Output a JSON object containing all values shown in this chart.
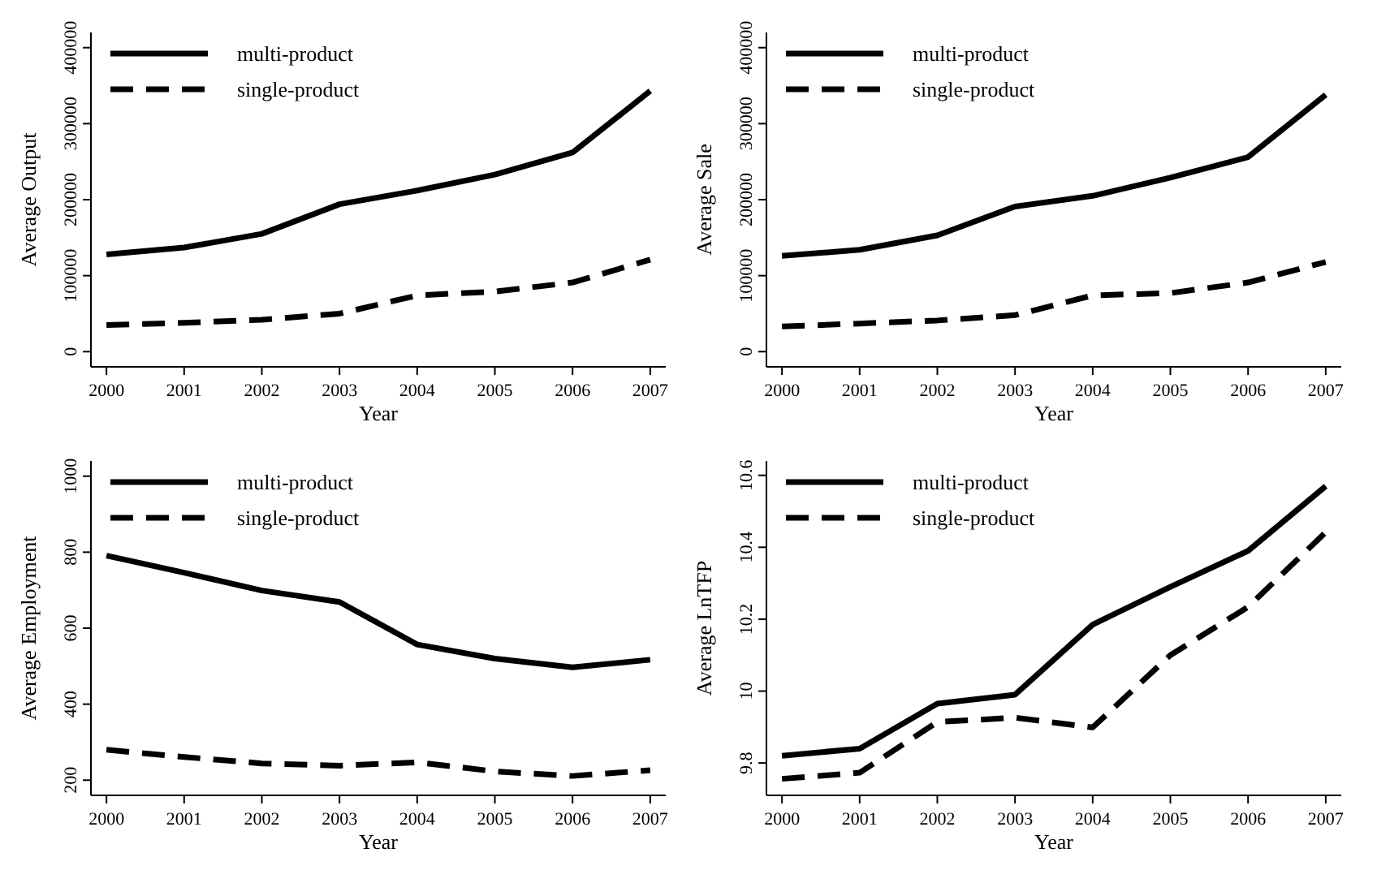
{
  "chart_data": [
    {
      "type": "line",
      "xlabel": "Year",
      "ylabel": "Average Output",
      "x": [
        2000,
        2001,
        2002,
        2003,
        2004,
        2005,
        2006,
        2007
      ],
      "xlim": [
        1999.8,
        2007.2
      ],
      "xticks": [
        2000,
        2001,
        2002,
        2003,
        2004,
        2005,
        2006,
        2007
      ],
      "ylim": [
        -20000,
        420000
      ],
      "yticks": [
        0,
        100000,
        200000,
        300000,
        400000
      ],
      "legend": "top left",
      "grid": false,
      "marker": "none",
      "series": [
        {
          "name": "multi-product",
          "color": "#000000",
          "line_style": "solid",
          "values": [
            128000,
            137000,
            155000,
            194000,
            212000,
            233000,
            262000,
            343000
          ]
        },
        {
          "name": "single-product",
          "color": "#000000",
          "line_style": "dashed",
          "values": [
            35000,
            38000,
            42000,
            50000,
            74000,
            79000,
            91000,
            121000
          ]
        }
      ]
    },
    {
      "type": "line",
      "xlabel": "Year",
      "ylabel": "Average Sale",
      "x": [
        2000,
        2001,
        2002,
        2003,
        2004,
        2005,
        2006,
        2007
      ],
      "xlim": [
        1999.8,
        2007.2
      ],
      "xticks": [
        2000,
        2001,
        2002,
        2003,
        2004,
        2005,
        2006,
        2007
      ],
      "ylim": [
        -20000,
        420000
      ],
      "yticks": [
        0,
        100000,
        200000,
        300000,
        400000
      ],
      "legend": "top left",
      "grid": false,
      "marker": "none",
      "series": [
        {
          "name": "multi-product",
          "color": "#000000",
          "line_style": "solid",
          "values": [
            126000,
            134000,
            153000,
            191000,
            205000,
            229000,
            256000,
            338000
          ]
        },
        {
          "name": "single-product",
          "color": "#000000",
          "line_style": "dashed",
          "values": [
            33000,
            37000,
            41000,
            48000,
            74000,
            77000,
            91000,
            118000
          ]
        }
      ]
    },
    {
      "type": "line",
      "xlabel": "Year",
      "ylabel": "Average Employment",
      "x": [
        2000,
        2001,
        2002,
        2003,
        2004,
        2005,
        2006,
        2007
      ],
      "xlim": [
        1999.8,
        2007.2
      ],
      "xticks": [
        2000,
        2001,
        2002,
        2003,
        2004,
        2005,
        2006,
        2007
      ],
      "ylim": [
        160,
        1040
      ],
      "yticks": [
        200,
        400,
        600,
        800,
        1000
      ],
      "legend": "top left",
      "grid": false,
      "marker": "none",
      "series": [
        {
          "name": "multi-product",
          "color": "#000000",
          "line_style": "solid",
          "values": [
            791,
            746,
            699,
            669,
            557,
            520,
            497,
            517
          ]
        },
        {
          "name": "single-product",
          "color": "#000000",
          "line_style": "dashed",
          "values": [
            280,
            261,
            244,
            238,
            247,
            223,
            211,
            226
          ]
        }
      ]
    },
    {
      "type": "line",
      "xlabel": "Year",
      "ylabel": "Average LnTFP",
      "x": [
        2000,
        2001,
        2002,
        2003,
        2004,
        2005,
        2006,
        2007
      ],
      "xlim": [
        1999.8,
        2007.2
      ],
      "xticks": [
        2000,
        2001,
        2002,
        2003,
        2004,
        2005,
        2006,
        2007
      ],
      "ylim": [
        9.71,
        10.64
      ],
      "yticks": [
        9.8,
        10,
        10.2,
        10.4,
        10.6
      ],
      "legend": "top left",
      "grid": false,
      "marker": "none",
      "series": [
        {
          "name": "multi-product",
          "color": "#000000",
          "line_style": "solid",
          "values": [
            9.82,
            9.84,
            9.965,
            9.99,
            10.185,
            10.29,
            10.39,
            10.57
          ]
        },
        {
          "name": "single-product",
          "color": "#000000",
          "line_style": "dashed",
          "values": [
            9.756,
            9.773,
            9.914,
            9.926,
            9.899,
            10.1,
            10.234,
            10.442
          ]
        }
      ]
    }
  ]
}
